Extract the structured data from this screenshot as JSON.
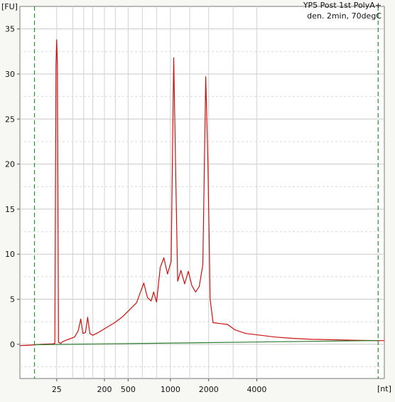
{
  "chart_data": {
    "type": "line",
    "title_lines": [
      "YP5 Post 1st PolyA+",
      "den. 2min, 70degC"
    ],
    "ylabel": "[FU]",
    "xlabel": "[nt]",
    "x_tick_labels": [
      "25",
      "200",
      "500",
      "1000",
      "2000",
      "4000"
    ],
    "y_ticks": [
      0,
      5,
      10,
      15,
      20,
      25,
      30,
      35
    ],
    "ylim": [
      -3.8,
      37.5
    ],
    "x_scale": "ladder (relative migration position 0-1)",
    "x_tick_positions": [
      0.101,
      0.232,
      0.297,
      0.413,
      0.518,
      0.65
    ],
    "dashed_markers": [
      0.04,
      0.983
    ],
    "grid": true,
    "series": [
      {
        "color": "#cc1111",
        "points": [
          [
            0.0,
            -0.15
          ],
          [
            0.03,
            -0.1
          ],
          [
            0.06,
            0.0
          ],
          [
            0.09,
            0.05
          ],
          [
            0.096,
            0.1
          ],
          [
            0.099,
            31.0
          ],
          [
            0.101,
            33.8
          ],
          [
            0.103,
            31.0
          ],
          [
            0.106,
            0.2
          ],
          [
            0.112,
            0.1
          ],
          [
            0.118,
            0.3
          ],
          [
            0.13,
            0.5
          ],
          [
            0.15,
            0.8
          ],
          [
            0.16,
            1.5
          ],
          [
            0.167,
            2.8
          ],
          [
            0.173,
            1.2
          ],
          [
            0.18,
            1.3
          ],
          [
            0.186,
            3.0
          ],
          [
            0.192,
            1.2
          ],
          [
            0.2,
            1.0
          ],
          [
            0.215,
            1.3
          ],
          [
            0.235,
            1.8
          ],
          [
            0.26,
            2.4
          ],
          [
            0.28,
            3.0
          ],
          [
            0.3,
            3.8
          ],
          [
            0.32,
            4.6
          ],
          [
            0.34,
            6.8
          ],
          [
            0.35,
            5.2
          ],
          [
            0.36,
            4.8
          ],
          [
            0.367,
            5.8
          ],
          [
            0.375,
            4.7
          ],
          [
            0.385,
            8.5
          ],
          [
            0.395,
            9.6
          ],
          [
            0.405,
            7.8
          ],
          [
            0.415,
            9.2
          ],
          [
            0.422,
            31.8
          ],
          [
            0.427,
            20.0
          ],
          [
            0.433,
            7.0
          ],
          [
            0.442,
            8.2
          ],
          [
            0.452,
            6.7
          ],
          [
            0.462,
            8.1
          ],
          [
            0.472,
            6.5
          ],
          [
            0.482,
            5.8
          ],
          [
            0.492,
            6.4
          ],
          [
            0.502,
            8.8
          ],
          [
            0.51,
            29.7
          ],
          [
            0.516,
            20.0
          ],
          [
            0.522,
            5.0
          ],
          [
            0.53,
            2.4
          ],
          [
            0.55,
            2.3
          ],
          [
            0.57,
            2.2
          ],
          [
            0.59,
            1.6
          ],
          [
            0.62,
            1.2
          ],
          [
            0.66,
            1.0
          ],
          [
            0.7,
            0.8
          ],
          [
            0.75,
            0.65
          ],
          [
            0.8,
            0.55
          ],
          [
            0.86,
            0.5
          ],
          [
            0.92,
            0.45
          ],
          [
            0.97,
            0.42
          ],
          [
            1.0,
            0.4
          ]
        ]
      },
      {
        "color": "#2e7d32",
        "points": [
          [
            0.04,
            -0.05
          ],
          [
            0.983,
            0.42
          ]
        ]
      }
    ]
  }
}
